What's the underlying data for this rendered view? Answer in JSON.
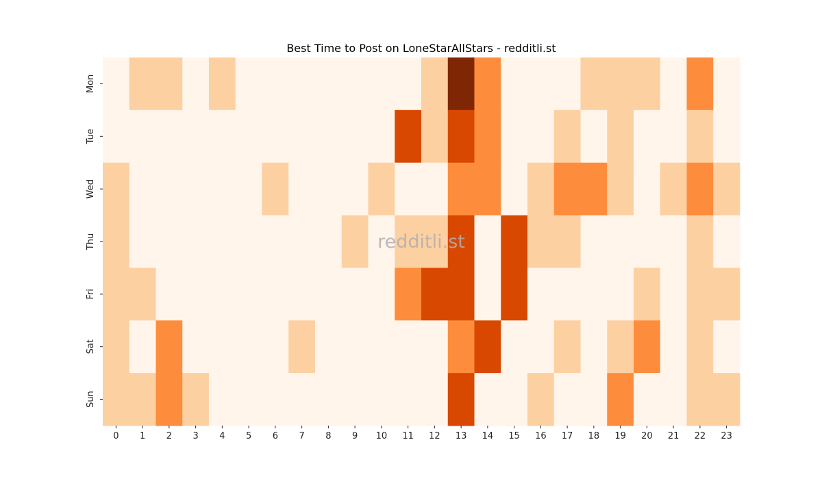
{
  "chart_data": {
    "type": "heatmap",
    "title": "Best Time to Post on LoneStarAllStars - redditli.st",
    "watermark": "redditli.st",
    "xlabel": "",
    "ylabel": "",
    "x_categories": [
      "0",
      "1",
      "2",
      "3",
      "4",
      "5",
      "6",
      "7",
      "8",
      "9",
      "10",
      "11",
      "12",
      "13",
      "14",
      "15",
      "16",
      "17",
      "18",
      "19",
      "20",
      "21",
      "22",
      "23"
    ],
    "y_categories": [
      "Mon",
      "Tue",
      "Wed",
      "Thu",
      "Fri",
      "Sat",
      "Sun"
    ],
    "colormap": "Oranges",
    "color_scale": [
      "#fff5eb",
      "#fdd0a2",
      "#fd8d3c",
      "#d94801",
      "#7f2704"
    ],
    "value_range": [
      0,
      4
    ],
    "colorbar": false,
    "values": [
      [
        0,
        1,
        1,
        0,
        1,
        0,
        0,
        0,
        0,
        0,
        0,
        0,
        1,
        4,
        2,
        0,
        0,
        0,
        1,
        1,
        1,
        0,
        2,
        0
      ],
      [
        0,
        0,
        0,
        0,
        0,
        0,
        0,
        0,
        0,
        0,
        0,
        3,
        1,
        3,
        2,
        0,
        0,
        1,
        0,
        1,
        0,
        0,
        1,
        0
      ],
      [
        1,
        0,
        0,
        0,
        0,
        0,
        1,
        0,
        0,
        0,
        1,
        0,
        0,
        2,
        2,
        0,
        1,
        2,
        2,
        1,
        0,
        1,
        2,
        1
      ],
      [
        1,
        0,
        0,
        0,
        0,
        0,
        0,
        0,
        0,
        1,
        0,
        1,
        1,
        3,
        0,
        3,
        1,
        1,
        0,
        0,
        0,
        0,
        1,
        0
      ],
      [
        1,
        1,
        0,
        0,
        0,
        0,
        0,
        0,
        0,
        0,
        0,
        2,
        3,
        3,
        0,
        3,
        0,
        0,
        0,
        0,
        1,
        0,
        1,
        1
      ],
      [
        1,
        0,
        2,
        0,
        0,
        0,
        0,
        1,
        0,
        0,
        0,
        0,
        0,
        2,
        3,
        0,
        0,
        1,
        0,
        1,
        2,
        0,
        1,
        0
      ],
      [
        1,
        1,
        2,
        1,
        0,
        0,
        0,
        0,
        0,
        0,
        0,
        0,
        0,
        3,
        0,
        0,
        1,
        0,
        0,
        2,
        0,
        0,
        1,
        1
      ]
    ]
  }
}
